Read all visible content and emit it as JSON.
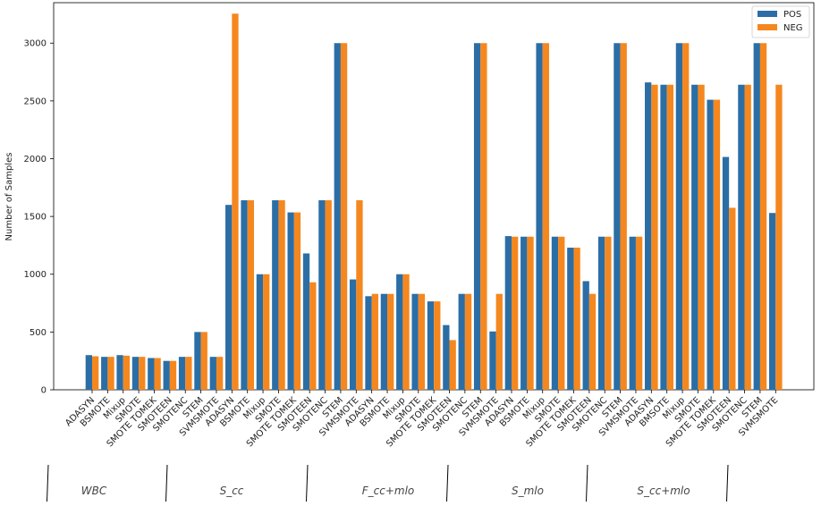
{
  "chart_data": {
    "type": "bar",
    "title": "",
    "xlabel": "",
    "ylabel": "Number of Samples",
    "ylim": [
      0,
      3350
    ],
    "yticks": [
      0,
      500,
      1000,
      1500,
      2000,
      2500,
      3000
    ],
    "grid": false,
    "legend": {
      "position": "top-right",
      "entries": [
        "POS",
        "NEG"
      ]
    },
    "categories": [
      "ADASYN",
      "BSMOTE",
      "Mixup",
      "SMOTE",
      "SMOTE TOMEK",
      "SMOTEEN",
      "SMOTENC",
      "STEM",
      "SVMSMOTE",
      "ADASYN",
      "BSMOTE",
      "Mixup",
      "SMOTE",
      "SMOTE TOMEK",
      "SMOTEEN",
      "SMOTENC",
      "STEM",
      "SVMSMOTE",
      "ADASYN",
      "BSMOTE",
      "Mixup",
      "SMOTE",
      "SMOTE TOMEK",
      "SMOTEEN",
      "SMOTENC",
      "STEM",
      "SVMSMOTE",
      "ADASYN",
      "BSMOTE",
      "Mixup",
      "SMOTE",
      "SMOTE TOMEK",
      "SMOTEEN",
      "SMOTENC",
      "STEM",
      "SVMSMOTE",
      "ADASYN",
      "BMSOTE",
      "Mixup",
      "SMOTE",
      "SMOTE TOMEK",
      "SMOTEEN",
      "SMOTENC",
      "STEM",
      "SVMSMOTE"
    ],
    "series": [
      {
        "name": "POS",
        "color": "#2b6ea6",
        "values": [
          300,
          285,
          300,
          285,
          275,
          250,
          285,
          500,
          285,
          1600,
          1640,
          1000,
          1640,
          1535,
          1180,
          1640,
          3000,
          955,
          810,
          830,
          1000,
          830,
          765,
          560,
          830,
          3000,
          505,
          1330,
          1325,
          3000,
          1325,
          1230,
          940,
          1325,
          3000,
          1325,
          2660,
          2640,
          3000,
          2640,
          2510,
          2015,
          2640,
          3000,
          1530
        ]
      },
      {
        "name": "NEG",
        "color": "#f5871f",
        "values": [
          290,
          285,
          295,
          285,
          275,
          250,
          285,
          500,
          285,
          3255,
          1640,
          1000,
          1640,
          1535,
          930,
          1640,
          3000,
          1640,
          830,
          830,
          1000,
          830,
          765,
          430,
          830,
          3000,
          830,
          1325,
          1325,
          3000,
          1325,
          1230,
          830,
          1325,
          3000,
          1325,
          2640,
          2640,
          3000,
          2640,
          2510,
          1575,
          2640,
          3000,
          2640
        ]
      }
    ],
    "groups": [
      {
        "label": "WBC",
        "count": 9
      },
      {
        "label": "S_cc",
        "count": 9
      },
      {
        "label": "F_cc+mlo",
        "count": 9
      },
      {
        "label": "S_mlo",
        "count": 9
      },
      {
        "label": "S_cc+mlo",
        "count": 9
      }
    ]
  }
}
